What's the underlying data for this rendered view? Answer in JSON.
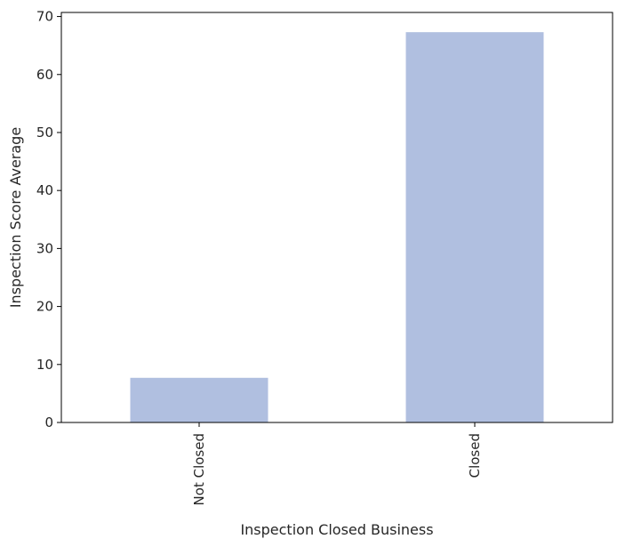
{
  "chart_data": {
    "type": "bar",
    "categories": [
      "Not Closed",
      "Closed"
    ],
    "values": [
      7.7,
      67.3
    ],
    "xlabel": "Inspection Closed Business",
    "ylabel": "Inspection Score Average",
    "ylim": [
      0,
      70.7
    ],
    "yticks": [
      0,
      10,
      20,
      30,
      40,
      50,
      60,
      70
    ],
    "bar_color": "#b0bfe0",
    "axis_color": "#000000",
    "grid": false,
    "legend": false,
    "x_tick_rotation": "vertical"
  }
}
